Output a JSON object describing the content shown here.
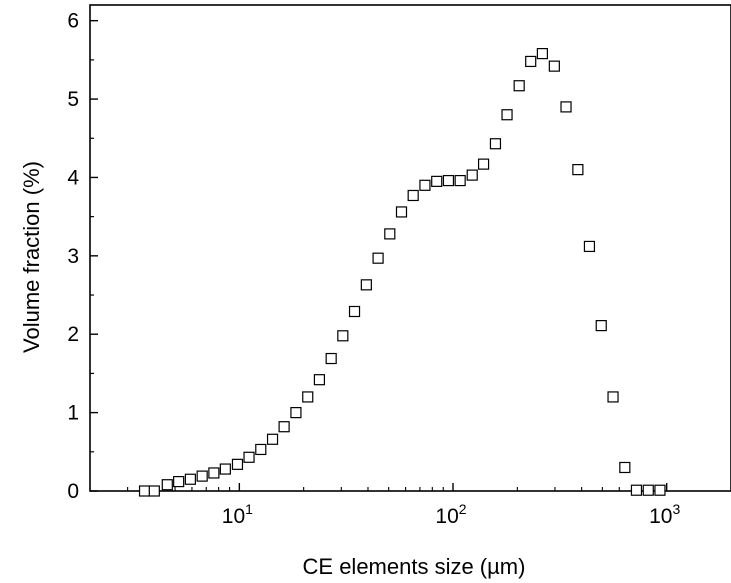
{
  "chart_data": {
    "type": "scatter",
    "xscale": "log",
    "xlabel": "CE elements size (µm)",
    "ylabel": "Volume fraction (%)",
    "xlim": [
      2,
      2000
    ],
    "ylim": [
      0,
      6.2
    ],
    "xticks": [
      {
        "value": 10,
        "base": "10",
        "exp": "1"
      },
      {
        "value": 100,
        "base": "10",
        "exp": "2"
      },
      {
        "value": 1000,
        "base": "10",
        "exp": "3"
      }
    ],
    "yticks": [
      0,
      1,
      2,
      3,
      4,
      5,
      6
    ],
    "yticks_minor": [
      0.5,
      1.5,
      2.5,
      3.5,
      4.5,
      5.5
    ],
    "grid": false,
    "legend": "none",
    "marker": "open-square",
    "series": [
      {
        "x": [
          3.6,
          4.0,
          4.6,
          5.2,
          5.9,
          6.7,
          7.6,
          8.6,
          9.8,
          11.1,
          12.6,
          14.3,
          16.2,
          18.4,
          20.9,
          23.7,
          26.9,
          30.5,
          34.6,
          39.3,
          44.6,
          50.6,
          57.4,
          65.1,
          73.9,
          83.9,
          95.2,
          108,
          123,
          139,
          158,
          179,
          204,
          231,
          262,
          298,
          338,
          384,
          435,
          494,
          561,
          637,
          722,
          820,
          930
        ],
        "y": [
          0.0,
          0.0,
          0.08,
          0.12,
          0.15,
          0.19,
          0.23,
          0.28,
          0.34,
          0.43,
          0.53,
          0.66,
          0.82,
          1.0,
          1.2,
          1.42,
          1.69,
          1.98,
          2.29,
          2.63,
          2.97,
          3.28,
          3.56,
          3.77,
          3.9,
          3.95,
          3.96,
          3.96,
          4.03,
          4.17,
          4.43,
          4.8,
          5.17,
          5.48,
          5.58,
          5.42,
          4.9,
          4.1,
          3.12,
          2.11,
          1.2,
          0.3,
          0.01,
          0.01,
          0.01
        ]
      }
    ]
  }
}
